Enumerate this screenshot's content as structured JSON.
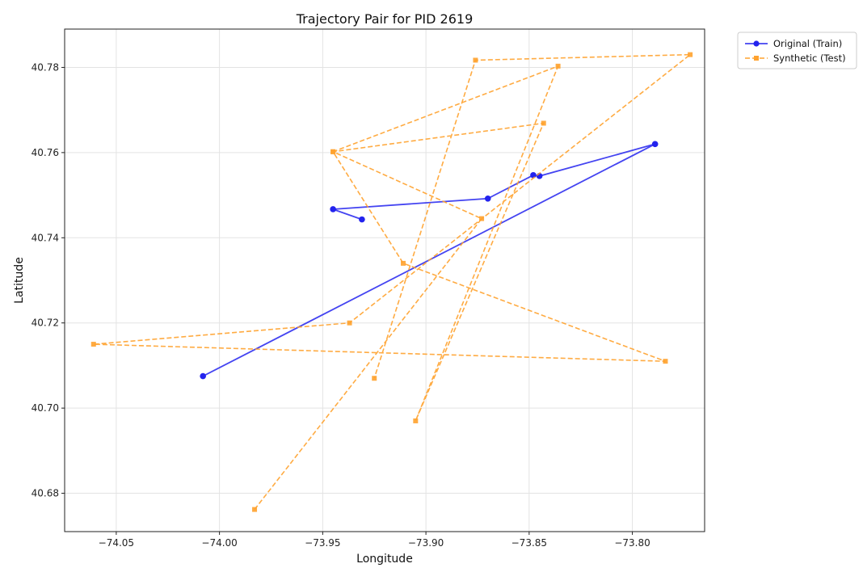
{
  "chart_data": {
    "type": "line",
    "title": "Trajectory Pair for PID 2619",
    "xlabel": "Longitude",
    "ylabel": "Latitude",
    "xlim": [
      -74.075,
      -73.765
    ],
    "ylim": [
      40.671,
      40.789
    ],
    "xticks": [
      -74.05,
      -74.0,
      -73.95,
      -73.9,
      -73.85,
      -73.8
    ],
    "xtick_labels": [
      "−74.05",
      "−74.00",
      "−73.95",
      "−73.90",
      "−73.85",
      "−73.80"
    ],
    "yticks": [
      40.68,
      40.7,
      40.72,
      40.74,
      40.76,
      40.78
    ],
    "ytick_labels": [
      "40.68",
      "40.70",
      "40.72",
      "40.74",
      "40.76",
      "40.78"
    ],
    "grid": true,
    "legend_position": "outside-top-right",
    "series": [
      {
        "name": "Original (Train)",
        "color": "#2323ee",
        "linestyle": "solid",
        "marker": "circle",
        "x": [
          -74.008,
          -73.789,
          -73.845,
          -73.848,
          -73.87,
          -73.945,
          -73.931
        ],
        "y": [
          40.7075,
          40.762,
          40.7545,
          40.7547,
          40.7492,
          40.7467,
          40.7443
        ]
      },
      {
        "name": "Synthetic (Test)",
        "color": "#ffa22e",
        "linestyle": "dashed",
        "marker": "square",
        "x": [
          -73.983,
          -73.873,
          -73.945,
          -73.843,
          -73.905,
          -73.836,
          -73.945,
          -73.911,
          -73.784,
          -74.061,
          -73.937,
          -73.772,
          -73.876,
          -73.925
        ],
        "y": [
          40.6762,
          40.7445,
          40.7602,
          40.7669,
          40.697,
          40.7803,
          40.7602,
          40.734,
          40.711,
          40.715,
          40.72,
          40.783,
          40.7817,
          40.707
        ]
      }
    ]
  }
}
